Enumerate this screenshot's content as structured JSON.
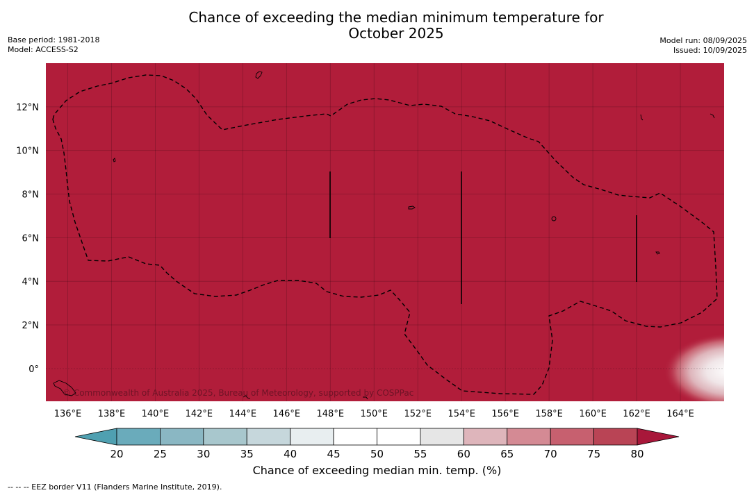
{
  "header": {
    "title_line1": "Chance of exceeding the median minimum temperature for",
    "title_line2": "October 2025",
    "base_period": "Base period: 1981-2018",
    "model": "Model: ACCESS-S2",
    "model_run": "Model run: 08/09/2025",
    "issued": "Issued: 10/09/2025"
  },
  "map": {
    "background_color": "#b11d3a",
    "copyright": "© Commonwealth of Australia 2025, Bureau of Meteorology, supported by COSPPac",
    "lon_range": [
      135,
      166
    ],
    "lat_range": [
      -1.5,
      14
    ],
    "lon_ticks": [
      136,
      138,
      140,
      142,
      144,
      146,
      148,
      150,
      152,
      154,
      156,
      158,
      160,
      162,
      164
    ],
    "lon_labels": [
      "136°E",
      "138°E",
      "140°E",
      "142°E",
      "144°E",
      "146°E",
      "148°E",
      "150°E",
      "152°E",
      "154°E",
      "156°E",
      "158°E",
      "160°E",
      "162°E",
      "164°E"
    ],
    "lat_ticks": [
      0,
      2,
      4,
      6,
      8,
      10,
      12
    ],
    "lat_labels": [
      "0°",
      "2°N",
      "4°N",
      "6°N",
      "8°N",
      "10°N",
      "12°N"
    ]
  },
  "colorbar": {
    "label": "Chance of exceeding median min. temp. (%)",
    "ticks": [
      "20",
      "25",
      "30",
      "35",
      "40",
      "45",
      "50",
      "55",
      "60",
      "65",
      "70",
      "75",
      "80"
    ],
    "colors": [
      "#6aabbb",
      "#8ab7c3",
      "#a8c7cd",
      "#c6d7dc",
      "#e8eef0",
      "#ffffff",
      "#ffffff",
      "#e6e6e6",
      "#deb5bb",
      "#d48a94",
      "#c7606f",
      "#b94455"
    ],
    "low_color": "#4fa0b1",
    "high_color": "#a8173a"
  },
  "footnote": "--  --  -- EEZ border V11 (Flanders Marine Institute, 2019)."
}
